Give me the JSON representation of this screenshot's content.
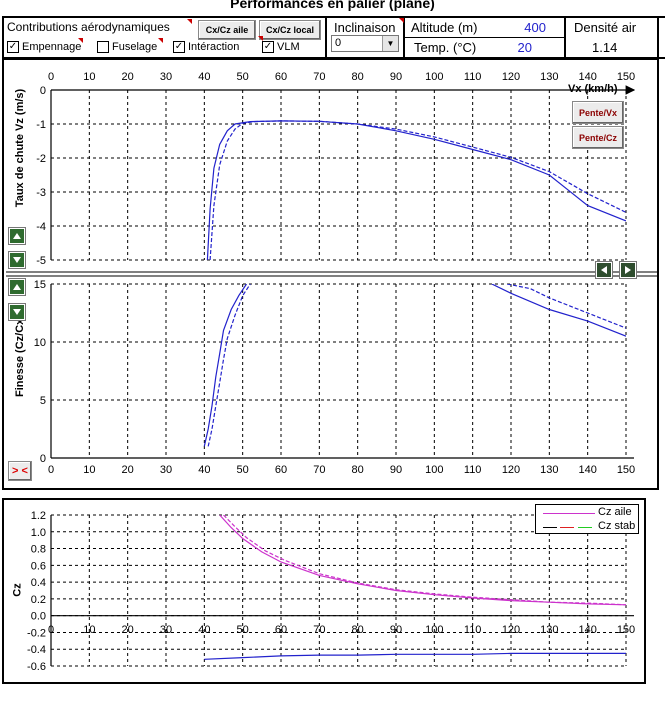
{
  "title": "Performances en palier (plané)",
  "contributions": {
    "label": "Contributions aérodynamiques",
    "btn_cx_aile": "Cx/Cz aile",
    "btn_cx_local": "Cx/Cz local",
    "checkboxes": [
      {
        "label": "Empennage",
        "checked": true
      },
      {
        "label": "Fuselage",
        "checked": false
      },
      {
        "label": "Intéraction",
        "checked": true
      },
      {
        "label": "VLM",
        "checked": true
      }
    ]
  },
  "inclinaison": {
    "label": "Inclinaison",
    "value": "0"
  },
  "altitude": {
    "label": "Altitude (m)",
    "value": "400"
  },
  "temp": {
    "label": "Temp. (°C)",
    "value": "20"
  },
  "densite": {
    "label": "Densité air",
    "value": "1.14"
  },
  "buttons": {
    "pente_vx": "Pente/Vx",
    "pente_cz": "Pente/Cz",
    "swap": "> <"
  },
  "colors": {
    "curve_blue": "#2222cc",
    "cz_aile": "#cc33cc",
    "cz_stab_red": "#d22",
    "cz_stab_green": "#2c2"
  },
  "chart_data": [
    {
      "type": "line",
      "name": "vz",
      "ylabel": "Taux de chute Vz (m/s)",
      "xlabel": "Vx (km/h)",
      "xlim": [
        0,
        150
      ],
      "ylim": [
        -5,
        0
      ],
      "xticks": [
        0,
        10,
        20,
        30,
        40,
        50,
        60,
        70,
        80,
        90,
        100,
        110,
        120,
        130,
        140,
        150
      ],
      "yticks": [
        0,
        -1,
        -2,
        -3,
        -4,
        -5
      ],
      "series": [
        {
          "style": "solid",
          "x": [
            40.8,
            41.5,
            42.5,
            44,
            46,
            48,
            52,
            60,
            70,
            80,
            90,
            100,
            110,
            120,
            130,
            135,
            140,
            150
          ],
          "y": [
            -5,
            -3.5,
            -2.3,
            -1.6,
            -1.2,
            -1.0,
            -0.93,
            -0.91,
            -0.92,
            -1.0,
            -1.2,
            -1.45,
            -1.75,
            -2.05,
            -2.5,
            -2.95,
            -3.4,
            -3.85
          ]
        },
        {
          "style": "dashed",
          "x": [
            41.5,
            42.5,
            44,
            46,
            48,
            50,
            53,
            60,
            70,
            80,
            90,
            100,
            110,
            120,
            130,
            140,
            150
          ],
          "y": [
            -5,
            -3.4,
            -2.2,
            -1.5,
            -1.15,
            -0.98,
            -0.93,
            -0.91,
            -0.92,
            -1.0,
            -1.15,
            -1.38,
            -1.68,
            -1.98,
            -2.4,
            -3.05,
            -3.6
          ]
        }
      ]
    },
    {
      "type": "line",
      "name": "finesse",
      "ylabel": "Finesse (Cz/Cx)",
      "xlim": [
        0,
        150
      ],
      "ylim": [
        0,
        15
      ],
      "xticks": [
        0,
        10,
        20,
        30,
        40,
        50,
        60,
        70,
        80,
        90,
        100,
        110,
        120,
        130,
        140,
        150
      ],
      "yticks": [
        0,
        5,
        10,
        15
      ],
      "series": [
        {
          "style": "solid",
          "x": [
            40,
            41,
            42,
            43,
            44,
            45,
            47,
            49,
            51
          ],
          "y": [
            1,
            2.5,
            4.5,
            7,
            9,
            11,
            12.8,
            14,
            15
          ]
        },
        {
          "style": "solid",
          "x": [
            115,
            120,
            130,
            140,
            150
          ],
          "y": [
            15,
            14.2,
            12.8,
            11.8,
            10.5
          ]
        },
        {
          "style": "dashed",
          "x": [
            41,
            42,
            43,
            44,
            45,
            46,
            48,
            50,
            52
          ],
          "y": [
            1,
            2.5,
            4.5,
            6.5,
            8.5,
            10.3,
            12.3,
            14,
            15
          ]
        },
        {
          "style": "dashed",
          "x": [
            119,
            125,
            130,
            140,
            150
          ],
          "y": [
            15,
            14.6,
            13.8,
            12.5,
            11.2
          ]
        }
      ]
    },
    {
      "type": "line",
      "name": "cz",
      "ylabel": "Cz",
      "xlim": [
        0,
        150
      ],
      "ylim": [
        -0.6,
        1.2
      ],
      "xticks": [
        0,
        10,
        20,
        30,
        40,
        50,
        60,
        70,
        80,
        90,
        100,
        110,
        120,
        130,
        140,
        150
      ],
      "yticks": [
        1.2,
        1.0,
        0.8,
        0.6,
        0.4,
        0.2,
        0.0,
        -0.2,
        -0.4,
        -0.6
      ],
      "legend": [
        "Cz aile",
        "Cz stab"
      ],
      "series": [
        {
          "name": "Cz aile",
          "color": "#cc33cc",
          "style": "solid",
          "x": [
            44,
            47,
            50,
            55,
            60,
            70,
            80,
            90,
            100,
            110,
            120,
            130,
            140,
            150
          ],
          "y": [
            1.2,
            1.05,
            0.92,
            0.76,
            0.64,
            0.48,
            0.38,
            0.3,
            0.25,
            0.21,
            0.18,
            0.16,
            0.14,
            0.13
          ]
        },
        {
          "name": "",
          "color": "#cc33cc",
          "style": "dashed",
          "x": [
            45,
            48,
            51,
            56,
            61,
            70,
            80,
            90,
            100,
            110,
            120,
            130,
            140,
            150
          ],
          "y": [
            1.2,
            1.06,
            0.93,
            0.77,
            0.66,
            0.5,
            0.39,
            0.31,
            0.26,
            0.22,
            0.19,
            0.16,
            0.15,
            0.13
          ]
        },
        {
          "name": "",
          "color": "#2222cc",
          "style": "solid",
          "x": [
            40,
            50,
            60,
            70,
            80,
            90,
            100,
            110,
            120,
            130,
            140,
            150
          ],
          "y": [
            -0.52,
            -0.5,
            -0.48,
            -0.47,
            -0.47,
            -0.46,
            -0.46,
            -0.46,
            -0.45,
            -0.45,
            -0.45,
            -0.45
          ]
        }
      ]
    }
  ]
}
